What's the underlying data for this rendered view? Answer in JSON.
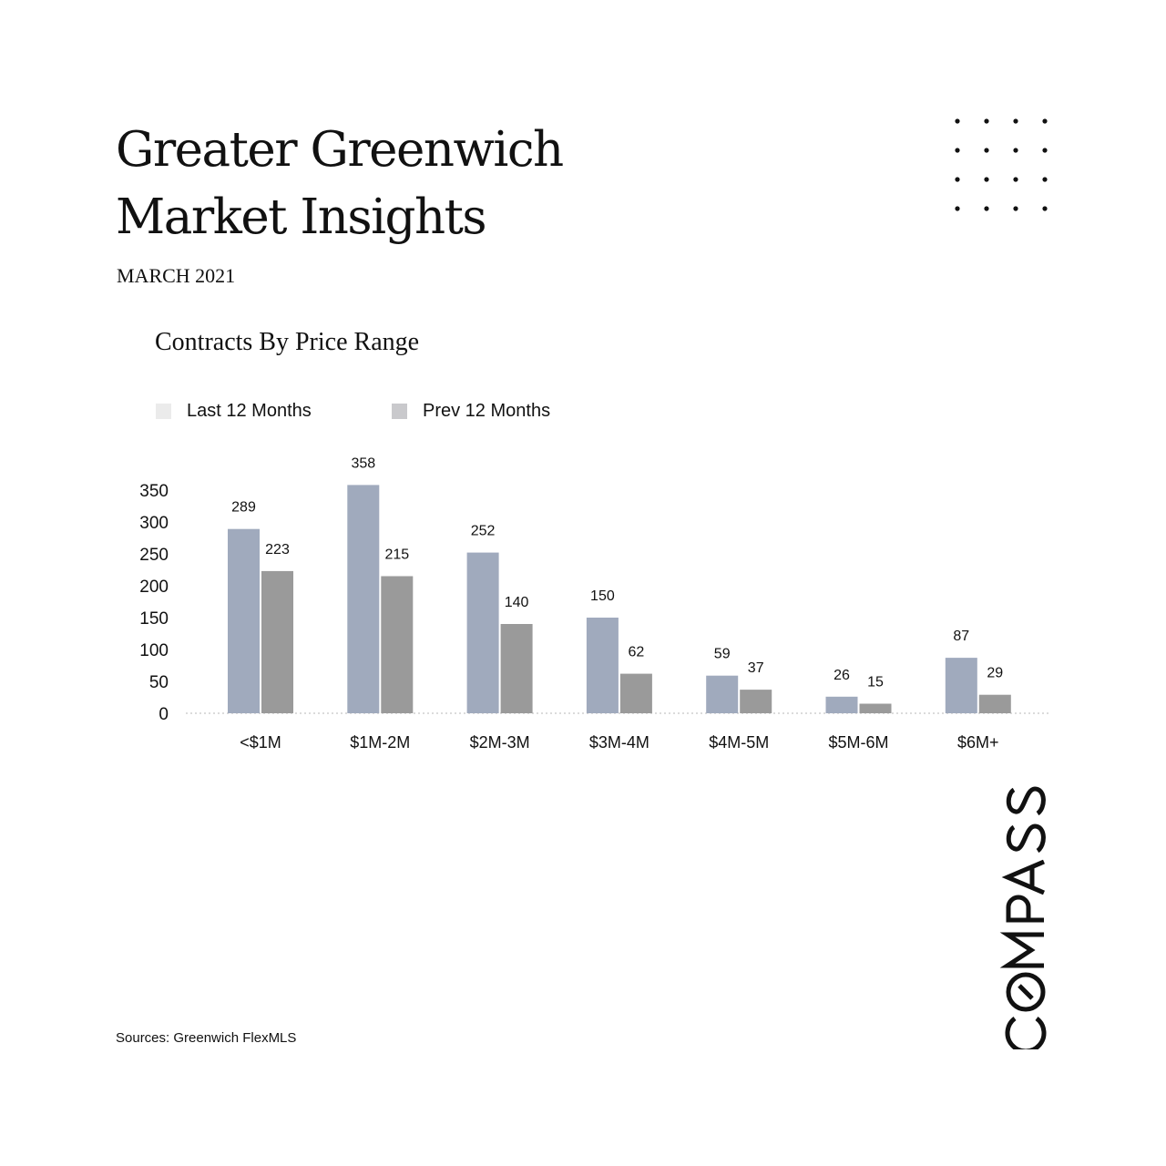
{
  "header": {
    "title_line1": "Greater Greenwich",
    "title_line2": "Market Insights",
    "date": "MARCH 2021"
  },
  "footer": {
    "sources": "Sources: Greenwich FlexMLS"
  },
  "logo": {
    "text": "COMPASS"
  },
  "colors": {
    "last_12_bar": "#a0aabd",
    "prev_12_bar": "#9a9a9a",
    "legend_last_swatch": "#ebebeb",
    "legend_prev_swatch": "#c9c9cc",
    "text": "#111111"
  },
  "chart_data": {
    "type": "bar",
    "title": "Contracts By Price Range",
    "categories": [
      "<$1M",
      "$1M-2M",
      "$2M-3M",
      "$3M-4M",
      "$4M-5M",
      "$5M-6M",
      "$6M+"
    ],
    "series": [
      {
        "name": "Last 12 Months",
        "values": [
          289,
          358,
          252,
          150,
          59,
          26,
          87
        ]
      },
      {
        "name": "Prev 12 Months",
        "values": [
          223,
          215,
          140,
          62,
          37,
          15,
          29
        ]
      }
    ],
    "yticks": [
      0,
      50,
      100,
      150,
      200,
      250,
      300,
      350
    ],
    "ylim": [
      0,
      350
    ],
    "xlabel": "",
    "ylabel": "",
    "legend": "top-left",
    "grid": false,
    "data_labels": true
  }
}
